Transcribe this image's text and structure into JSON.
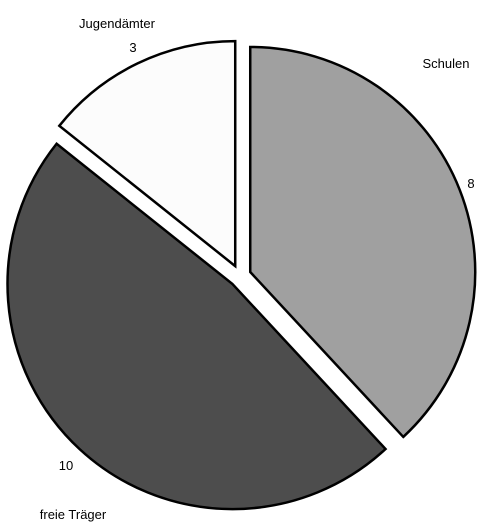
{
  "chart_data": {
    "type": "pie",
    "title": "",
    "slices": [
      {
        "label": "Schulen",
        "value": 8,
        "color": "#a0a0a0"
      },
      {
        "label": "freie Träger",
        "value": 10,
        "color": "#4d4d4d"
      },
      {
        "label": "Jugendämter",
        "value": 3,
        "color": "#fcfcfc"
      }
    ],
    "exploded": true,
    "start_angle": "12 o'clock",
    "direction": "clockwise",
    "legend": "none"
  }
}
